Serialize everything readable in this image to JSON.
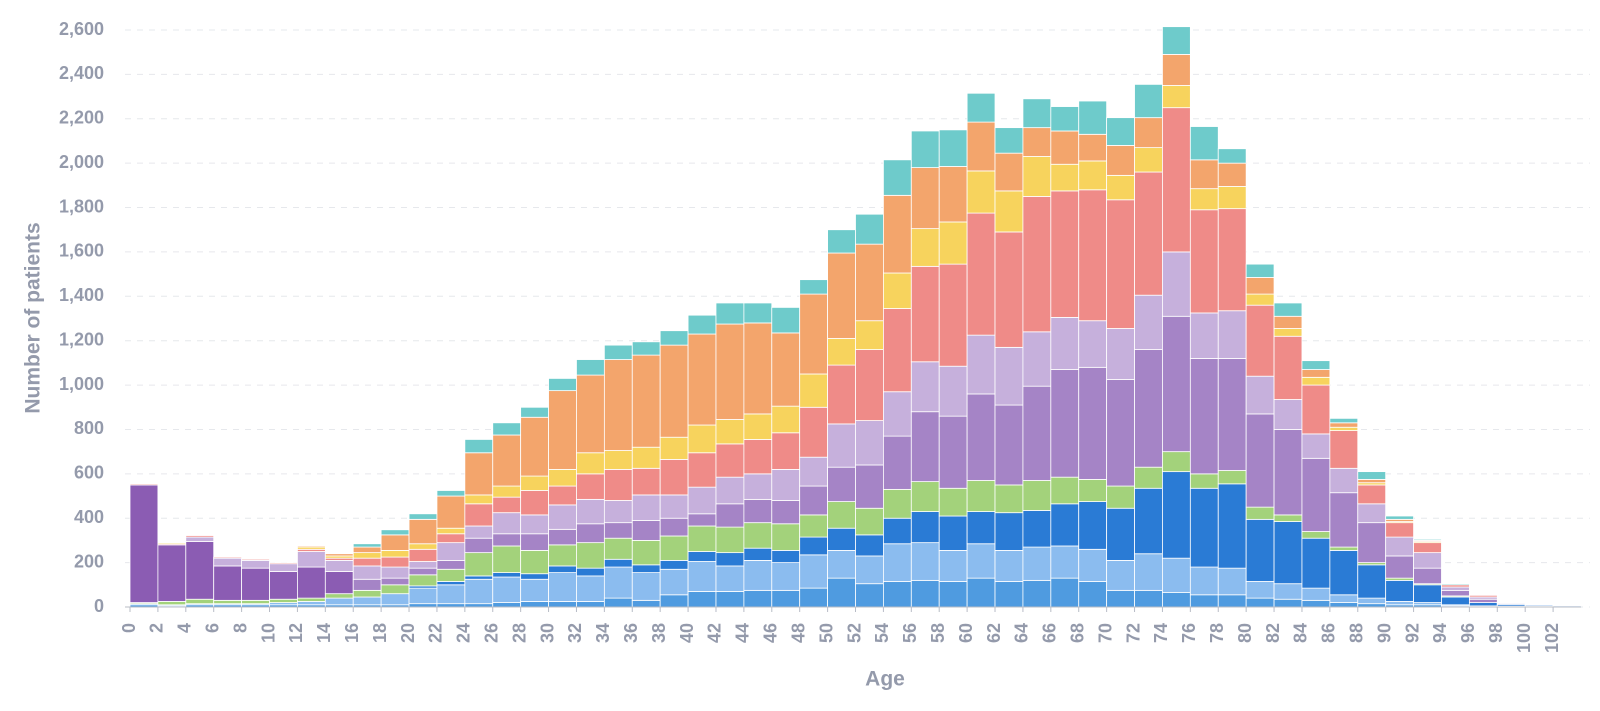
{
  "chart_data": {
    "type": "histogram",
    "x_label": "Age",
    "y_label": "Number of patients",
    "bins": [
      0,
      2,
      4,
      6,
      8,
      10,
      12,
      14,
      16,
      18,
      20,
      22,
      24,
      26,
      28,
      30,
      32,
      34,
      36,
      38,
      40,
      42,
      44,
      46,
      48,
      50,
      52,
      54,
      56,
      58,
      60,
      62,
      64,
      66,
      68,
      70,
      72,
      74,
      76,
      78,
      80,
      82,
      84,
      86,
      88,
      90,
      92,
      94,
      96,
      98,
      100,
      102,
      104
    ],
    "series": [
      {
        "color": "#4f9be0",
        "values": [
          10,
          5,
          10,
          10,
          10,
          10,
          10,
          10,
          10,
          10,
          15,
          15,
          15,
          20,
          25,
          25,
          25,
          40,
          30,
          55,
          70,
          70,
          75,
          75,
          85,
          130,
          105,
          115,
          120,
          115,
          130,
          115,
          120,
          130,
          115,
          75,
          75,
          65,
          55,
          55,
          40,
          35,
          30,
          20,
          15,
          10,
          10,
          5,
          3,
          2,
          2,
          1
        ]
      },
      {
        "color": "#8bbcef",
        "values": [
          5,
          5,
          5,
          5,
          5,
          10,
          15,
          30,
          35,
          50,
          70,
          85,
          110,
          115,
          100,
          130,
          115,
          140,
          125,
          115,
          135,
          115,
          135,
          125,
          150,
          125,
          125,
          170,
          170,
          140,
          155,
          140,
          150,
          145,
          145,
          135,
          165,
          155,
          125,
          120,
          75,
          70,
          55,
          35,
          25,
          15,
          10,
          5,
          2,
          2,
          2,
          1
        ]
      },
      {
        "color": "#2a7bd5",
        "values": [
          0,
          0,
          0,
          0,
          0,
          0,
          0,
          0,
          0,
          0,
          10,
          15,
          15,
          20,
          25,
          30,
          35,
          35,
          35,
          40,
          45,
          60,
          55,
          55,
          80,
          100,
          95,
          115,
          140,
          155,
          145,
          170,
          165,
          190,
          215,
          235,
          295,
          390,
          355,
          380,
          280,
          280,
          225,
          200,
          150,
          95,
          80,
          35,
          15,
          8,
          5,
          4
        ]
      },
      {
        "color": "#a3d27b",
        "values": [
          5,
          15,
          20,
          15,
          15,
          15,
          15,
          20,
          30,
          40,
          50,
          55,
          105,
          120,
          105,
          95,
          115,
          95,
          110,
          110,
          115,
          115,
          115,
          120,
          100,
          120,
          120,
          130,
          135,
          125,
          140,
          125,
          135,
          120,
          100,
          100,
          95,
          90,
          65,
          60,
          55,
          30,
          30,
          15,
          10,
          10,
          5,
          5,
          0,
          3,
          0,
          0
        ]
      },
      {
        "color": "#8b5cb3",
        "values": [
          530,
          255,
          260,
          155,
          145,
          125,
          140,
          100,
          0,
          0,
          0,
          0,
          0,
          0,
          0,
          0,
          0,
          0,
          0,
          0,
          0,
          0,
          0,
          0,
          0,
          0,
          0,
          0,
          0,
          0,
          0,
          0,
          0,
          0,
          0,
          0,
          0,
          0,
          0,
          0,
          0,
          0,
          0,
          0,
          0,
          0,
          0,
          0,
          0,
          0,
          0,
          0
        ]
      },
      {
        "color": "#a584c6",
        "values": [
          0,
          0,
          0,
          0,
          0,
          0,
          0,
          0,
          50,
          30,
          30,
          40,
          65,
          55,
          75,
          70,
          85,
          70,
          90,
          80,
          55,
          105,
          105,
          105,
          130,
          155,
          195,
          240,
          315,
          325,
          390,
          360,
          425,
          485,
          505,
          480,
          530,
          610,
          520,
          505,
          420,
          385,
          330,
          245,
          180,
          100,
          70,
          25,
          15,
          4,
          2,
          1
        ]
      },
      {
        "color": "#c6b0dc",
        "values": [
          0,
          0,
          20,
          35,
          35,
          35,
          70,
          50,
          60,
          50,
          30,
          80,
          55,
          95,
          85,
          110,
          110,
          100,
          115,
          105,
          120,
          120,
          115,
          140,
          130,
          195,
          200,
          200,
          225,
          225,
          265,
          260,
          245,
          235,
          210,
          230,
          245,
          290,
          205,
          215,
          170,
          135,
          110,
          110,
          85,
          85,
          70,
          15,
          10,
          2,
          1,
          1
        ]
      },
      {
        "color": "#ef8b88",
        "values": [
          5,
          5,
          7,
          5,
          5,
          5,
          10,
          10,
          35,
          45,
          55,
          40,
          100,
          70,
          110,
          85,
          115,
          140,
          120,
          160,
          155,
          150,
          155,
          165,
          225,
          265,
          320,
          375,
          430,
          460,
          550,
          520,
          610,
          570,
          590,
          580,
          555,
          650,
          465,
          460,
          320,
          285,
          220,
          170,
          85,
          65,
          45,
          10,
          8,
          1,
          0,
          0
        ]
      },
      {
        "color": "#f7d35d",
        "values": [
          0,
          5,
          0,
          0,
          0,
          0,
          10,
          10,
          25,
          30,
          25,
          25,
          40,
          50,
          65,
          75,
          95,
          85,
          95,
          100,
          125,
          110,
          115,
          120,
          150,
          120,
          130,
          160,
          170,
          190,
          190,
          185,
          180,
          120,
          130,
          110,
          110,
          100,
          95,
          100,
          50,
          35,
          35,
          15,
          10,
          5,
          5,
          0,
          0,
          0,
          0,
          0
        ]
      },
      {
        "color": "#f3a56c",
        "values": [
          0,
          0,
          0,
          0,
          0,
          0,
          5,
          10,
          25,
          70,
          110,
          145,
          190,
          230,
          265,
          355,
          350,
          410,
          415,
          415,
          410,
          430,
          410,
          330,
          360,
          385,
          345,
          350,
          275,
          250,
          220,
          170,
          130,
          150,
          120,
          135,
          135,
          140,
          130,
          105,
          75,
          55,
          35,
          20,
          15,
          10,
          5,
          0,
          0,
          0,
          0,
          0
        ]
      },
      {
        "color": "#6ecbcb",
        "values": [
          0,
          0,
          0,
          0,
          0,
          0,
          0,
          0,
          15,
          23,
          25,
          25,
          60,
          55,
          45,
          55,
          70,
          65,
          60,
          65,
          85,
          95,
          90,
          115,
          65,
          105,
          135,
          160,
          165,
          165,
          130,
          115,
          130,
          110,
          150,
          125,
          150,
          125,
          150,
          65,
          60,
          60,
          40,
          20,
          35,
          15,
          5,
          5,
          2,
          0,
          0,
          0
        ]
      }
    ],
    "xlim": [
      0,
      104
    ],
    "xticks": [
      0,
      2,
      4,
      6,
      8,
      10,
      12,
      14,
      16,
      18,
      20,
      22,
      24,
      26,
      28,
      30,
      32,
      34,
      36,
      38,
      40,
      42,
      44,
      46,
      48,
      50,
      52,
      54,
      56,
      58,
      60,
      62,
      64,
      66,
      68,
      70,
      72,
      74,
      76,
      78,
      80,
      82,
      84,
      86,
      88,
      90,
      92,
      94,
      96,
      98,
      100,
      102
    ],
    "ylim": [
      0,
      2600
    ],
    "yticks": [
      0,
      200,
      400,
      600,
      800,
      {
        "value": 1000,
        "label": "1,000"
      },
      {
        "value": 1200,
        "label": "1,200"
      },
      {
        "value": 1400,
        "label": "1,400"
      },
      {
        "value": 1600,
        "label": "1,600"
      },
      {
        "value": 1800,
        "label": "1,800"
      },
      {
        "value": 2000,
        "label": "2,000"
      },
      {
        "value": 2200,
        "label": "2,200"
      },
      {
        "value": 2400,
        "label": "2,400"
      },
      {
        "value": 2600,
        "label": "2,600"
      }
    ],
    "grid": true
  }
}
